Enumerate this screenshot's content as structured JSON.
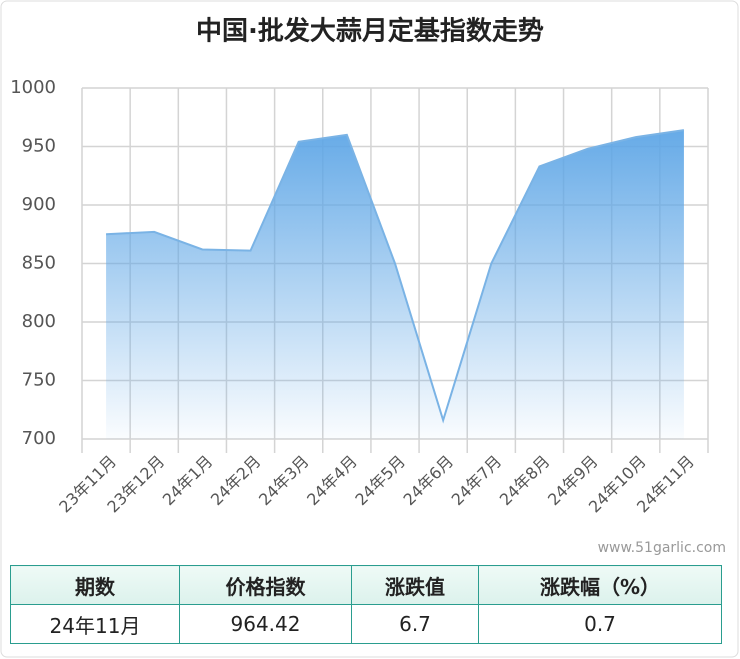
{
  "chart_data": {
    "type": "area",
    "title": "中国·批发大蒜月定基指数走势",
    "categories": [
      "23年11月",
      "23年12月",
      "24年1月",
      "24年2月",
      "24年3月",
      "24年4月",
      "24年5月",
      "24年6月",
      "24年7月",
      "24年8月",
      "24年9月",
      "24年10月",
      "24年11月"
    ],
    "values": [
      875,
      877,
      862,
      861,
      954,
      960,
      850,
      716,
      850,
      933,
      948,
      958,
      964
    ],
    "color": "#7ab3e5",
    "ylim": [
      700,
      1000
    ],
    "yticks": [
      700,
      750,
      800,
      850,
      900,
      950,
      1000
    ],
    "grid": true
  },
  "watermark": "www.51garlic.com",
  "table": {
    "header": [
      "期数",
      "价格指数",
      "涨跌值",
      "涨跌幅（%）"
    ],
    "rows": [
      [
        "24年11月",
        964.42,
        6.7,
        0.7
      ]
    ]
  }
}
